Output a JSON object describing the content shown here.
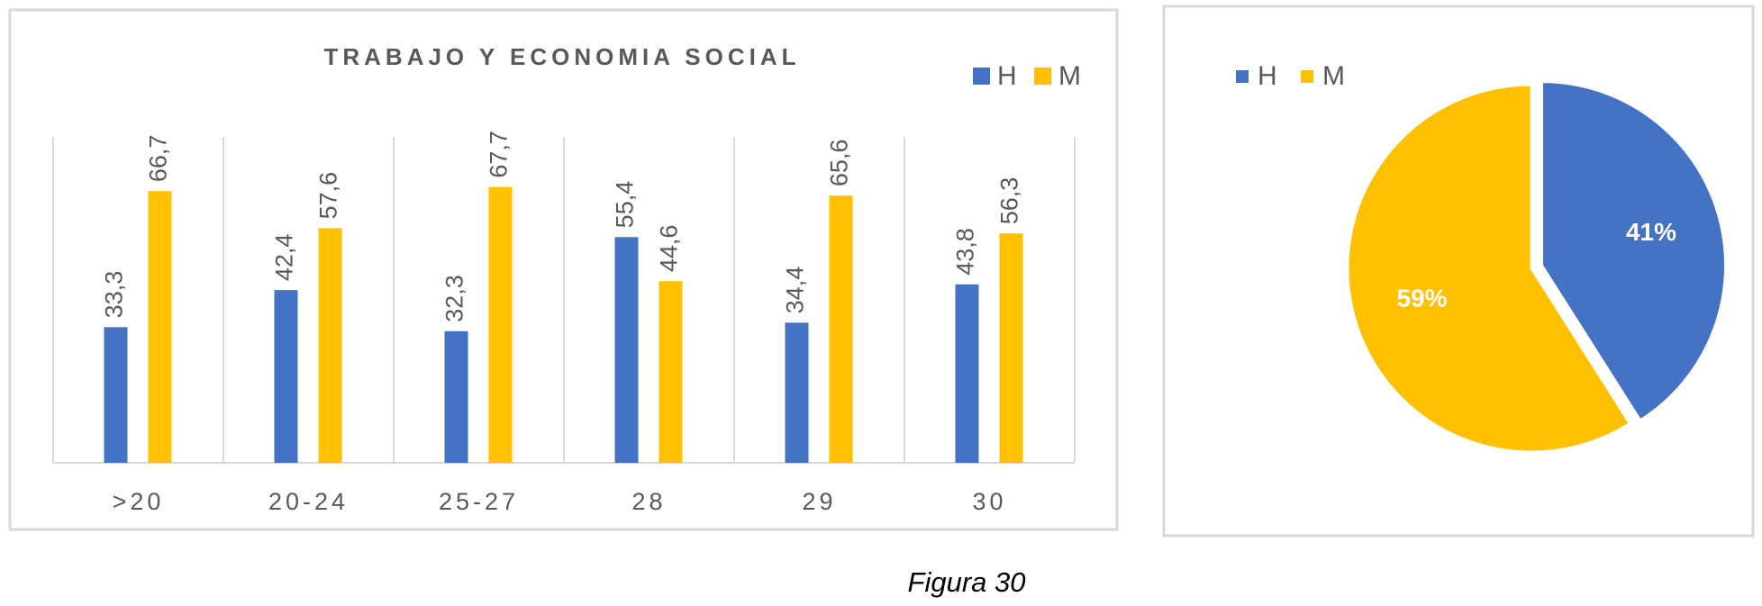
{
  "chart_data": [
    {
      "type": "bar",
      "title": "TRABAJO Y ECONOMIA SOCIAL",
      "categories": [
        ">20",
        "20-24",
        "25-27",
        "28",
        "29",
        "30"
      ],
      "series": [
        {
          "name": "H",
          "color": "#4472c4",
          "values": [
            33.3,
            42.4,
            32.3,
            55.4,
            34.4,
            43.8
          ],
          "value_labels": [
            "33,3",
            "42,4",
            "32,3",
            "55,4",
            "34,4",
            "43,8"
          ]
        },
        {
          "name": "M",
          "color": "#ffc000",
          "values": [
            66.7,
            57.6,
            67.7,
            44.6,
            65.6,
            56.3
          ],
          "value_labels": [
            "66,7",
            "57,6",
            "67,7",
            "44,6",
            "65,6",
            "56,3"
          ]
        }
      ],
      "ylim": [
        0,
        80
      ],
      "legend": "top-right"
    },
    {
      "type": "pie",
      "categories": [
        "H",
        "M"
      ],
      "values": [
        41,
        59
      ],
      "value_labels": [
        "41%",
        "59%"
      ],
      "colors": [
        "#4472c4",
        "#ffc000"
      ],
      "legend": "top-left"
    }
  ],
  "caption": "Figura 30"
}
